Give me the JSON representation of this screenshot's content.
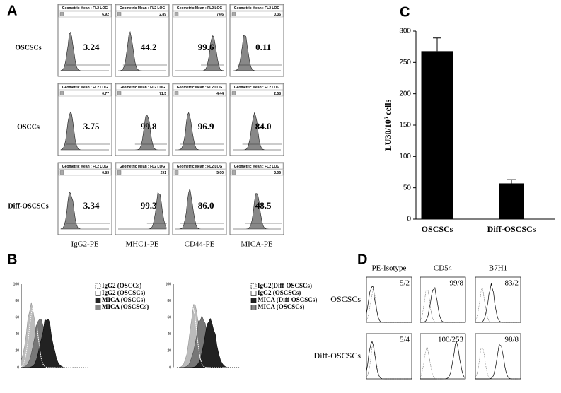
{
  "panels": {
    "A": {
      "label": "A",
      "header": "Geometric Mean : FL2 LOG",
      "rows": [
        "OSCSCs",
        "OSCCs",
        "Diff-OSCSCs"
      ],
      "columns": [
        "IgG2-PE",
        "MHC1-PE",
        "CD44-PE",
        "MICA-PE"
      ],
      "means": [
        [
          "6.92",
          "2.89",
          "74.6",
          "0.36"
        ],
        [
          "0.77",
          "71.5",
          "4.44",
          "2.58"
        ],
        [
          "0.83",
          "291",
          "5.00",
          "3.06"
        ]
      ],
      "percents": [
        [
          "3.24",
          "44.2",
          "99.6",
          "0.11"
        ],
        [
          "3.75",
          "99.8",
          "96.9",
          "84.0"
        ],
        [
          "3.34",
          "99.3",
          "86.0",
          "48.5"
        ]
      ]
    },
    "B": {
      "label": "B",
      "yticks": [
        "0",
        "20",
        "40",
        "60",
        "80",
        "100"
      ],
      "legends": [
        [
          "IgG2 (OSCCs)",
          "IgG2 (OSCSCs)",
          "MICA (OSCCs)",
          "MICA (OSCSCs)"
        ],
        [
          "IgG2(Diff-OSCSCs)",
          "IgG2 (OSCSCs)",
          "MICA (Diff-OSCSCs)",
          "MICA (OSCSCs)"
        ]
      ]
    },
    "D": {
      "label": "D",
      "columns": [
        "PE-Isotype",
        "CD54",
        "B7H1"
      ],
      "rows": [
        "OSCSCs",
        "Diff-OSCSCs"
      ],
      "values": [
        [
          "5/2",
          "99/8",
          "83/2"
        ],
        [
          "5/4",
          "100/253",
          "98/8"
        ]
      ]
    }
  },
  "chart_data": {
    "type": "bar",
    "label": "C",
    "ylabel": "LU30/10⁶ cells",
    "categories": [
      "OSCSCs",
      "Diff-OSCSCs"
    ],
    "values": [
      268,
      57
    ],
    "errors": [
      21,
      6
    ],
    "color": "#000000",
    "ylim": [
      0,
      300
    ],
    "yticks": [
      0,
      50,
      100,
      150,
      200,
      250,
      300
    ]
  }
}
